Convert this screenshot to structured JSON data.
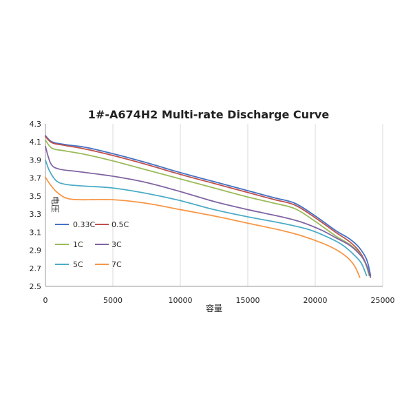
{
  "chart_data": {
    "type": "line",
    "title": "1#-A674H2 Multi-rate Discharge Curve",
    "xlabel": "容量",
    "ylabel": "电压",
    "xlim": [
      0,
      25000
    ],
    "ylim": [
      2.5,
      4.3
    ],
    "xticks": [
      "0",
      "5000",
      "10000",
      "15000",
      "20000",
      "25000"
    ],
    "yticks": [
      "2.5",
      "2.7",
      "2.9",
      "3.1",
      "3.3",
      "3.5",
      "3.7",
      "3.9",
      "4.1",
      "4.3"
    ],
    "grid": "vertical",
    "legend_position": "inside-bottom-left",
    "series": [
      {
        "name": "0.33C",
        "color": "#4472C4",
        "points": [
          [
            0,
            4.17
          ],
          [
            500,
            4.1
          ],
          [
            1500,
            4.07
          ],
          [
            3000,
            4.04
          ],
          [
            5000,
            3.97
          ],
          [
            7500,
            3.87
          ],
          [
            10000,
            3.76
          ],
          [
            12500,
            3.66
          ],
          [
            15000,
            3.56
          ],
          [
            17000,
            3.48
          ],
          [
            18500,
            3.42
          ],
          [
            20000,
            3.28
          ],
          [
            21500,
            3.12
          ],
          [
            22500,
            3.03
          ],
          [
            23200,
            2.94
          ],
          [
            23800,
            2.8
          ],
          [
            24100,
            2.62
          ]
        ]
      },
      {
        "name": "0.5C",
        "color": "#C0504D",
        "points": [
          [
            0,
            4.16
          ],
          [
            500,
            4.09
          ],
          [
            1500,
            4.06
          ],
          [
            3000,
            4.02
          ],
          [
            5000,
            3.95
          ],
          [
            7500,
            3.85
          ],
          [
            10000,
            3.74
          ],
          [
            12500,
            3.64
          ],
          [
            15000,
            3.54
          ],
          [
            17000,
            3.46
          ],
          [
            18500,
            3.4
          ],
          [
            20000,
            3.26
          ],
          [
            21500,
            3.1
          ],
          [
            22500,
            3.0
          ],
          [
            23200,
            2.9
          ],
          [
            23700,
            2.77
          ],
          [
            24000,
            2.62
          ]
        ]
      },
      {
        "name": "1C",
        "color": "#9BBB59",
        "points": [
          [
            0,
            4.12
          ],
          [
            500,
            4.03
          ],
          [
            1500,
            4.0
          ],
          [
            3000,
            3.96
          ],
          [
            5000,
            3.89
          ],
          [
            7500,
            3.79
          ],
          [
            10000,
            3.69
          ],
          [
            12500,
            3.59
          ],
          [
            15000,
            3.49
          ],
          [
            17000,
            3.42
          ],
          [
            18500,
            3.36
          ],
          [
            20000,
            3.22
          ],
          [
            21500,
            3.06
          ],
          [
            22500,
            2.97
          ],
          [
            23200,
            2.88
          ],
          [
            23700,
            2.76
          ],
          [
            24000,
            2.62
          ]
        ]
      },
      {
        "name": "3C",
        "color": "#8064A2",
        "points": [
          [
            0,
            4.05
          ],
          [
            400,
            3.86
          ],
          [
            1000,
            3.8
          ],
          [
            2500,
            3.77
          ],
          [
            5000,
            3.72
          ],
          [
            7500,
            3.65
          ],
          [
            10000,
            3.55
          ],
          [
            12500,
            3.44
          ],
          [
            15000,
            3.35
          ],
          [
            17500,
            3.27
          ],
          [
            19000,
            3.21
          ],
          [
            20500,
            3.12
          ],
          [
            21500,
            3.04
          ],
          [
            22500,
            2.96
          ],
          [
            23200,
            2.87
          ],
          [
            23700,
            2.77
          ],
          [
            24100,
            2.6
          ]
        ]
      },
      {
        "name": "5C",
        "color": "#4BACC6",
        "points": [
          [
            0,
            3.9
          ],
          [
            300,
            3.78
          ],
          [
            800,
            3.67
          ],
          [
            1500,
            3.63
          ],
          [
            3000,
            3.61
          ],
          [
            5000,
            3.59
          ],
          [
            7500,
            3.53
          ],
          [
            10000,
            3.45
          ],
          [
            12500,
            3.35
          ],
          [
            15000,
            3.27
          ],
          [
            17500,
            3.2
          ],
          [
            19500,
            3.13
          ],
          [
            21000,
            3.04
          ],
          [
            22000,
            2.96
          ],
          [
            22800,
            2.86
          ],
          [
            23400,
            2.76
          ],
          [
            23800,
            2.62
          ]
        ]
      },
      {
        "name": "7C",
        "color": "#F79646",
        "points": [
          [
            0,
            3.71
          ],
          [
            300,
            3.64
          ],
          [
            800,
            3.55
          ],
          [
            1500,
            3.48
          ],
          [
            2500,
            3.46
          ],
          [
            5000,
            3.46
          ],
          [
            7500,
            3.42
          ],
          [
            10000,
            3.35
          ],
          [
            12500,
            3.28
          ],
          [
            15000,
            3.2
          ],
          [
            17500,
            3.12
          ],
          [
            19000,
            3.06
          ],
          [
            20500,
            2.98
          ],
          [
            21500,
            2.91
          ],
          [
            22300,
            2.83
          ],
          [
            22900,
            2.73
          ],
          [
            23300,
            2.6
          ]
        ]
      }
    ]
  }
}
